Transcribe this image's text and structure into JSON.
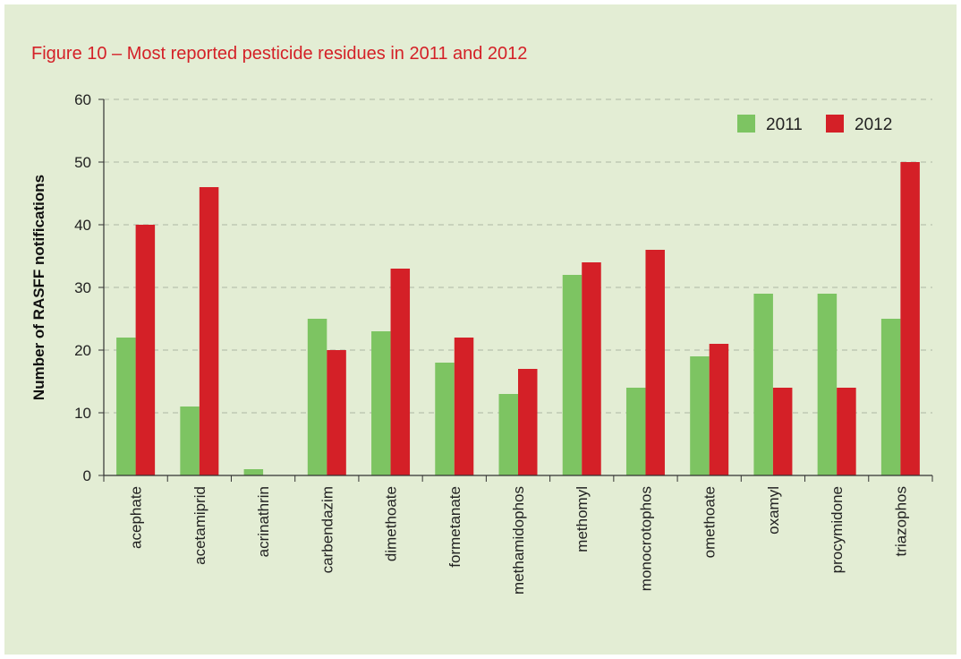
{
  "title": "Figure 10 – Most reported pesticide residues in 2011 and 2012",
  "colors": {
    "background": "#e3edd4",
    "title": "#d42027",
    "series_2011": "#7dc462",
    "series_2012": "#d42027",
    "grid": "#b9c2ae"
  },
  "chart_data": {
    "type": "bar",
    "title": "Figure 10 – Most reported pesticide residues in 2011 and 2012",
    "xlabel": "",
    "ylabel": "Number of RASFF notifications",
    "ylim": [
      0,
      60
    ],
    "yticks": [
      0,
      10,
      20,
      30,
      40,
      50,
      60
    ],
    "grid": true,
    "legend_position": "top-right",
    "categories": [
      "acephate",
      "acetamiprid",
      "acrinathrin",
      "carbendazim",
      "dimethoate",
      "formetanate",
      "methamidophos",
      "methomyl",
      "monocrotophos",
      "omethoate",
      "oxamyl",
      "procymidone",
      "triazophos"
    ],
    "series": [
      {
        "name": "2011",
        "color": "#7dc462",
        "values": [
          22,
          11,
          1,
          25,
          23,
          18,
          13,
          32,
          14,
          19,
          29,
          29,
          25
        ]
      },
      {
        "name": "2012",
        "color": "#d42027",
        "values": [
          40,
          46,
          0,
          20,
          33,
          22,
          17,
          34,
          36,
          21,
          14,
          14,
          50
        ]
      }
    ]
  }
}
